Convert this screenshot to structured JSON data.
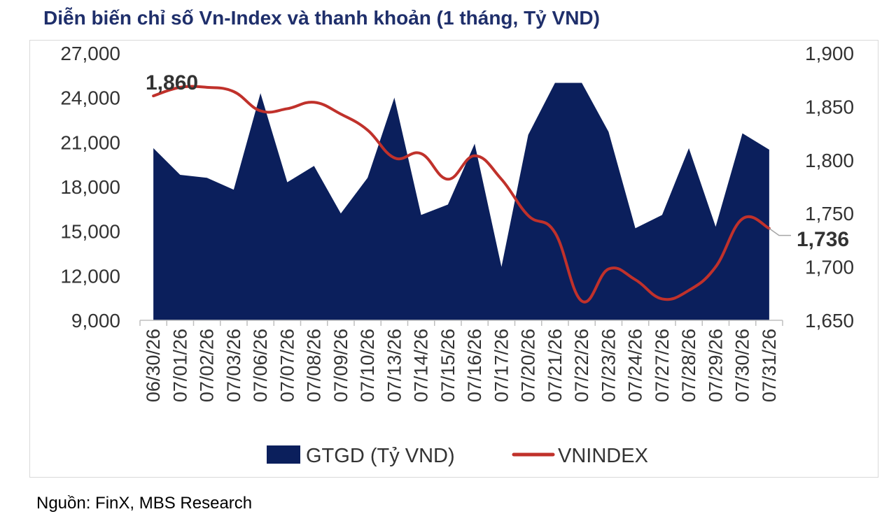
{
  "title": "Diễn biến chỉ số Vn-Index và thanh khoản (1 tháng, Tỷ VND)",
  "source": "Nguồn: FinX, MBS Research",
  "chart_data": {
    "type": "area+line",
    "categories": [
      "06/30/26",
      "07/01/26",
      "07/02/26",
      "07/03/26",
      "07/06/26",
      "07/07/26",
      "07/08/26",
      "07/09/26",
      "07/10/26",
      "07/13/26",
      "07/14/26",
      "07/15/26",
      "07/16/26",
      "07/17/26",
      "07/20/26",
      "07/21/26",
      "07/22/26",
      "07/23/26",
      "07/24/26",
      "07/27/26",
      "07/28/26",
      "07/29/26",
      "07/30/26",
      "07/31/26"
    ],
    "series": [
      {
        "name": "GTGD (Tỷ VND)",
        "type": "area",
        "axis": "left",
        "color": "#0b1f5c",
        "values": [
          20600,
          18800,
          18600,
          17800,
          24300,
          18300,
          19400,
          16200,
          18600,
          24000,
          16100,
          16800,
          20900,
          12600,
          21500,
          25000,
          25000,
          21700,
          15200,
          16100,
          20600,
          15300,
          21600,
          20500
        ]
      },
      {
        "name": "VNINDEX",
        "type": "line",
        "axis": "right",
        "color": "#c0312b",
        "values": [
          1860,
          1868,
          1868,
          1864,
          1846,
          1848,
          1854,
          1843,
          1828,
          1802,
          1806,
          1782,
          1804,
          1782,
          1748,
          1732,
          1668,
          1698,
          1688,
          1670,
          1678,
          1700,
          1745,
          1736
        ]
      }
    ],
    "y_left": {
      "ticks": [
        "27,000",
        "24,000",
        "21,000",
        "18,000",
        "15,000",
        "12,000",
        "9,000"
      ],
      "min": 9000,
      "max": 27000
    },
    "y_right": {
      "ticks": [
        "1,900",
        "1,850",
        "1,800",
        "1,750",
        "1,700",
        "1,650"
      ],
      "min": 1650,
      "max": 1900
    },
    "annotations": {
      "first_label": "1,860",
      "last_label": "1,736"
    },
    "legend": {
      "position": "bottom",
      "items": [
        "GTGD (Tỷ VND)",
        "VNINDEX"
      ]
    },
    "grid": false
  }
}
